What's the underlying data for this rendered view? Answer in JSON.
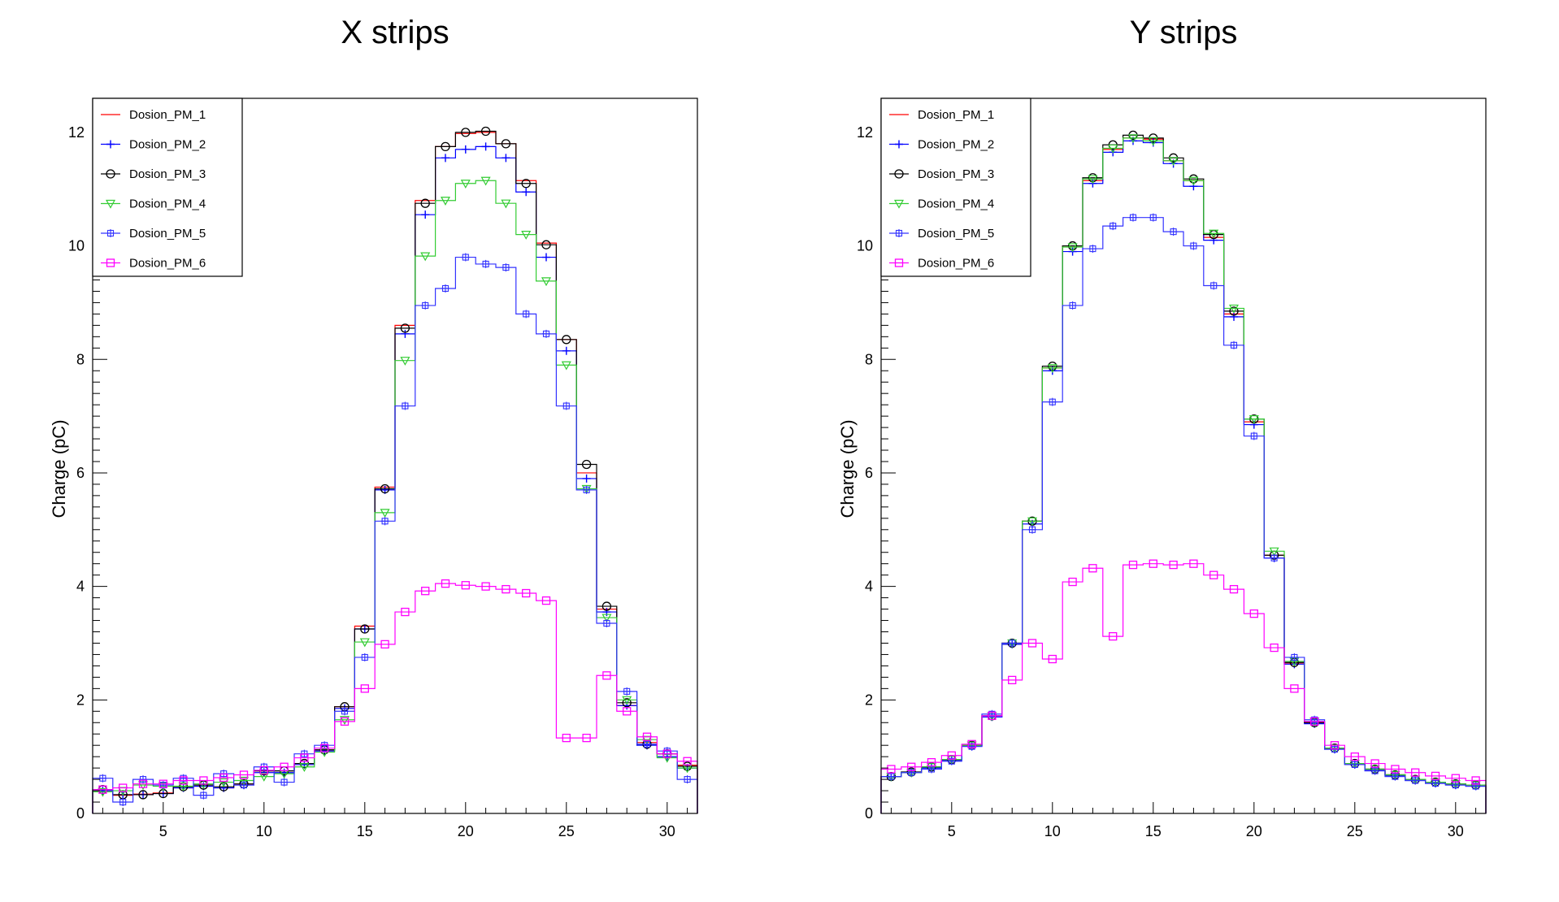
{
  "chart_data": [
    {
      "type": "step",
      "title": "X strips",
      "xlabel": "",
      "ylabel": "Charge (pC)",
      "xlim": [
        1.5,
        31.5
      ],
      "ylim": [
        0,
        12.6
      ],
      "xticks": [
        5,
        10,
        15,
        20,
        25,
        30
      ],
      "yticks": [
        0,
        2,
        4,
        6,
        8,
        10,
        12
      ],
      "grid": false,
      "legend_position": "top-left",
      "x": [
        2,
        3,
        4,
        5,
        6,
        7,
        8,
        9,
        10,
        11,
        12,
        13,
        14,
        15,
        16,
        17,
        18,
        19,
        20,
        21,
        22,
        23,
        24,
        25,
        26,
        27,
        28,
        29,
        30,
        31
      ],
      "series": [
        {
          "name": "Dosion_PM_1",
          "color": "#ff0000",
          "marker": "none",
          "values": [
            0.4,
            0.32,
            0.34,
            0.36,
            0.45,
            0.48,
            0.45,
            0.52,
            0.75,
            0.75,
            0.88,
            1.12,
            1.88,
            3.3,
            5.75,
            8.6,
            10.8,
            11.75,
            11.98,
            12.0,
            11.8,
            11.15,
            10.05,
            8.35,
            6.0,
            3.6,
            1.9,
            1.25,
            1.05,
            0.85
          ]
        },
        {
          "name": "Dosion_PM_2",
          "color": "#0000ff",
          "marker": "plus",
          "values": [
            0.4,
            0.33,
            0.33,
            0.35,
            0.45,
            0.48,
            0.45,
            0.5,
            0.72,
            0.72,
            0.86,
            1.1,
            1.85,
            3.25,
            5.7,
            8.45,
            10.55,
            11.55,
            11.7,
            11.75,
            11.55,
            10.95,
            9.8,
            8.15,
            5.9,
            3.55,
            1.9,
            1.2,
            1.0,
            0.8
          ]
        },
        {
          "name": "Dosion_PM_3",
          "color": "#000000",
          "marker": "circle",
          "values": [
            0.42,
            0.33,
            0.33,
            0.35,
            0.47,
            0.5,
            0.47,
            0.52,
            0.75,
            0.75,
            0.88,
            1.12,
            1.88,
            3.25,
            5.72,
            8.55,
            10.75,
            11.75,
            12.0,
            12.02,
            11.8,
            11.1,
            10.02,
            8.35,
            6.15,
            3.65,
            1.95,
            1.22,
            1.05,
            0.83
          ]
        },
        {
          "name": "Dosion_PM_4",
          "color": "#33cc33",
          "marker": "triangle-down",
          "values": [
            0.38,
            0.4,
            0.5,
            0.48,
            0.48,
            0.52,
            0.55,
            0.58,
            0.65,
            0.7,
            0.82,
            1.08,
            1.65,
            3.02,
            5.3,
            7.98,
            9.82,
            10.8,
            11.1,
            11.15,
            10.75,
            10.2,
            9.38,
            7.9,
            5.72,
            3.45,
            2.0,
            1.3,
            0.98,
            0.8
          ]
        },
        {
          "name": "Dosion_PM_5",
          "color": "#3333ff",
          "marker": "cross-box",
          "values": [
            0.62,
            0.2,
            0.6,
            0.5,
            0.62,
            0.32,
            0.7,
            0.5,
            0.82,
            0.55,
            1.05,
            1.2,
            1.8,
            2.75,
            5.15,
            7.18,
            8.95,
            9.25,
            9.8,
            9.68,
            9.62,
            8.8,
            8.45,
            7.18,
            5.7,
            3.35,
            2.15,
            1.22,
            1.1,
            0.6
          ]
        },
        {
          "name": "Dosion_PM_6",
          "color": "#ff00ff",
          "marker": "square",
          "values": [
            0.42,
            0.45,
            0.52,
            0.52,
            0.58,
            0.58,
            0.63,
            0.68,
            0.76,
            0.82,
            0.98,
            1.15,
            1.62,
            2.2,
            2.98,
            3.55,
            3.92,
            4.05,
            4.02,
            4.0,
            3.95,
            3.88,
            3.75,
            1.33,
            1.33,
            2.43,
            1.8,
            1.35,
            1.05,
            0.92
          ]
        }
      ]
    },
    {
      "type": "step",
      "title": "Y strips",
      "xlabel": "",
      "ylabel": "Charge (pC)",
      "xlim": [
        1.5,
        31.5
      ],
      "ylim": [
        0,
        12.6
      ],
      "xticks": [
        5,
        10,
        15,
        20,
        25,
        30
      ],
      "yticks": [
        0,
        2,
        4,
        6,
        8,
        10,
        12
      ],
      "grid": false,
      "legend_position": "top-left",
      "x": [
        2,
        3,
        4,
        5,
        6,
        7,
        8,
        9,
        10,
        11,
        12,
        13,
        14,
        15,
        16,
        17,
        18,
        19,
        20,
        21,
        22,
        23,
        24,
        25,
        26,
        27,
        28,
        29,
        30,
        31
      ],
      "series": [
        {
          "name": "Dosion_PM_1",
          "color": "#ff0000",
          "marker": "none",
          "values": [
            0.65,
            0.72,
            0.82,
            0.95,
            1.2,
            1.72,
            3.0,
            5.15,
            7.85,
            10.0,
            11.15,
            11.7,
            11.9,
            11.88,
            11.5,
            11.15,
            10.15,
            8.8,
            6.9,
            4.55,
            2.65,
            1.6,
            1.15,
            0.88,
            0.78,
            0.68,
            0.6,
            0.55,
            0.52,
            0.5
          ]
        },
        {
          "name": "Dosion_PM_2",
          "color": "#0000ff",
          "marker": "plus",
          "values": [
            0.65,
            0.72,
            0.8,
            0.93,
            1.18,
            1.7,
            2.98,
            5.1,
            7.8,
            9.9,
            11.1,
            11.65,
            11.85,
            11.82,
            11.45,
            11.05,
            10.1,
            8.75,
            6.85,
            4.5,
            2.63,
            1.58,
            1.13,
            0.86,
            0.76,
            0.66,
            0.58,
            0.53,
            0.5,
            0.48
          ]
        },
        {
          "name": "Dosion_PM_3",
          "color": "#000000",
          "marker": "circle",
          "values": [
            0.65,
            0.73,
            0.82,
            0.95,
            1.2,
            1.72,
            3.0,
            5.15,
            7.88,
            10.0,
            11.2,
            11.78,
            11.95,
            11.9,
            11.55,
            11.18,
            10.2,
            8.85,
            6.95,
            4.55,
            2.66,
            1.6,
            1.15,
            0.88,
            0.78,
            0.68,
            0.6,
            0.55,
            0.52,
            0.5
          ]
        },
        {
          "name": "Dosion_PM_4",
          "color": "#33cc33",
          "marker": "triangle-down",
          "values": [
            0.65,
            0.72,
            0.82,
            0.95,
            1.2,
            1.72,
            3.0,
            5.15,
            7.85,
            9.98,
            11.18,
            11.72,
            11.9,
            11.85,
            11.5,
            11.15,
            10.22,
            8.9,
            6.95,
            4.62,
            2.68,
            1.62,
            1.15,
            0.88,
            0.78,
            0.68,
            0.6,
            0.55,
            0.52,
            0.5
          ]
        },
        {
          "name": "Dosion_PM_5",
          "color": "#3333ff",
          "marker": "cross-box",
          "values": [
            0.65,
            0.72,
            0.78,
            0.92,
            1.18,
            1.75,
            3.0,
            5.0,
            7.25,
            8.95,
            9.95,
            10.35,
            10.5,
            10.5,
            10.25,
            10.0,
            9.3,
            8.25,
            6.65,
            4.5,
            2.75,
            1.65,
            1.13,
            0.86,
            0.75,
            0.65,
            0.58,
            0.53,
            0.5,
            0.48
          ]
        },
        {
          "name": "Dosion_PM_6",
          "color": "#ff00ff",
          "marker": "square",
          "values": [
            0.78,
            0.82,
            0.9,
            1.02,
            1.22,
            1.72,
            2.35,
            3.0,
            2.72,
            4.08,
            4.32,
            3.12,
            4.38,
            4.4,
            4.38,
            4.4,
            4.2,
            3.95,
            3.52,
            2.92,
            2.2,
            1.62,
            1.2,
            1.0,
            0.88,
            0.78,
            0.72,
            0.66,
            0.62,
            0.58
          ]
        }
      ]
    }
  ]
}
